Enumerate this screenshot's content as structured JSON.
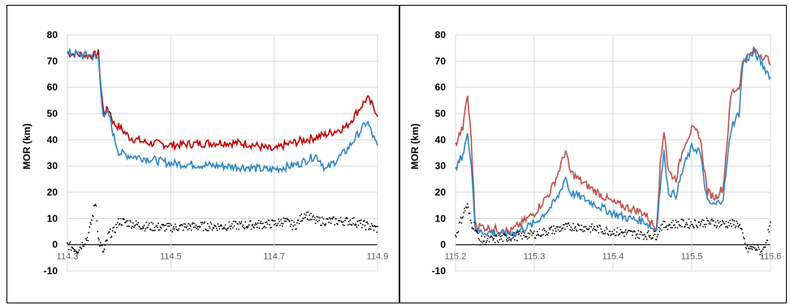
{
  "chart_data": [
    {
      "type": "line",
      "ylabel": "MOR (km)",
      "xlabel": "",
      "ylim": [
        -10,
        80
      ],
      "yticks": [
        80,
        70,
        60,
        50,
        40,
        30,
        20,
        10,
        0,
        -10
      ],
      "xlim": [
        114.3,
        114.9
      ],
      "xtick_labels": [
        "114.3",
        "114.5",
        "114.7",
        "114.9"
      ],
      "grid": true,
      "series": [
        {
          "color": "#c00000",
          "style": "line",
          "x": [
            114.3,
            114.35,
            114.36,
            114.365,
            114.37,
            114.38,
            114.39,
            114.4,
            114.42,
            114.45,
            114.5,
            114.55,
            114.6,
            114.65,
            114.7,
            114.72,
            114.74,
            114.76,
            114.78,
            114.8,
            114.84,
            114.88,
            114.9
          ],
          "y": [
            73,
            72,
            73,
            60,
            50,
            52,
            46,
            45,
            41,
            39,
            38,
            38.5,
            39,
            38.5,
            36,
            38,
            39,
            40,
            41,
            42,
            45,
            56,
            50
          ]
        },
        {
          "color": "#2e86c1",
          "style": "line",
          "x": [
            114.3,
            114.35,
            114.36,
            114.365,
            114.37,
            114.38,
            114.39,
            114.4,
            114.42,
            114.45,
            114.5,
            114.55,
            114.6,
            114.65,
            114.69,
            114.72,
            114.75,
            114.78,
            114.79,
            114.8,
            114.84,
            114.88,
            114.9
          ],
          "y": [
            73,
            72,
            71,
            58,
            49,
            50,
            41,
            35,
            34,
            33,
            31,
            30.5,
            30,
            29.5,
            28.5,
            29.5,
            31,
            34,
            32,
            28.5,
            36,
            47,
            37
          ]
        },
        {
          "color": "#000000",
          "style": "dots",
          "x": [
            114.3,
            114.32,
            114.34,
            114.35,
            114.355,
            114.36,
            114.37,
            114.38,
            114.39,
            114.4,
            114.45,
            114.5,
            114.55,
            114.6,
            114.65,
            114.7,
            114.72,
            114.74,
            114.76,
            114.78,
            114.8,
            114.85,
            114.9
          ],
          "y": [
            0,
            -2,
            3,
            12,
            17,
            2,
            -3,
            4,
            5,
            9,
            7,
            6.5,
            7,
            7,
            7.5,
            8,
            9,
            7,
            12,
            9,
            9,
            9,
            6
          ]
        }
      ]
    },
    {
      "type": "line",
      "ylabel": "MOR (km)",
      "xlabel": "",
      "ylim": [
        -10,
        80
      ],
      "yticks": [
        80,
        70,
        60,
        50,
        40,
        30,
        20,
        10,
        0,
        -10
      ],
      "xlim": [
        115.2,
        115.6
      ],
      "xtick_labels": [
        "115.2",
        "115.3",
        "115.4",
        "115.5",
        "115.6"
      ],
      "grid": true,
      "series": [
        {
          "color": "#c0504d",
          "style": "line",
          "x": [
            115.2,
            115.205,
            115.21,
            115.215,
            115.22,
            115.225,
            115.23,
            115.25,
            115.27,
            115.3,
            115.32,
            115.33,
            115.34,
            115.345,
            115.36,
            115.38,
            115.4,
            115.42,
            115.44,
            115.455,
            115.46,
            115.465,
            115.47,
            115.48,
            115.49,
            115.5,
            115.51,
            115.52,
            115.53,
            115.54,
            115.55,
            115.56,
            115.565,
            115.58,
            115.6
          ],
          "y": [
            38,
            42,
            45,
            58,
            40,
            8,
            7,
            6,
            5,
            12,
            20,
            27,
            36,
            28,
            24,
            20,
            16,
            14,
            12,
            6,
            30,
            45,
            28,
            25,
            38,
            44,
            42,
            20,
            18,
            22,
            58,
            60,
            70,
            74,
            70
          ]
        },
        {
          "color": "#2e86c1",
          "style": "line",
          "x": [
            115.2,
            115.205,
            115.21,
            115.215,
            115.22,
            115.225,
            115.23,
            115.25,
            115.27,
            115.3,
            115.32,
            115.33,
            115.34,
            115.345,
            115.36,
            115.38,
            115.4,
            115.42,
            115.44,
            115.455,
            115.46,
            115.465,
            115.47,
            115.48,
            115.49,
            115.5,
            115.51,
            115.52,
            115.53,
            115.54,
            115.55,
            115.56,
            115.565,
            115.58,
            115.6
          ],
          "y": [
            28,
            32,
            35,
            42,
            32,
            6,
            5,
            4.5,
            4,
            8,
            14,
            18,
            26,
            20,
            18,
            15,
            12,
            10,
            9,
            5,
            22,
            36,
            20,
            19,
            30,
            37,
            36,
            16,
            15,
            18,
            45,
            50,
            70,
            73,
            64
          ]
        },
        {
          "color": "#000000",
          "style": "dots",
          "x": [
            115.2,
            115.21,
            115.215,
            115.22,
            115.225,
            115.23,
            115.25,
            115.27,
            115.3,
            115.33,
            115.35,
            115.38,
            115.4,
            115.43,
            115.455,
            115.46,
            115.48,
            115.5,
            115.52,
            115.54,
            115.56,
            115.57,
            115.58,
            115.59,
            115.6
          ],
          "y": [
            3,
            12,
            15,
            8,
            7,
            1.5,
            2,
            3,
            4,
            6,
            7,
            6,
            5,
            4,
            3.5,
            7,
            8,
            8,
            8.5,
            8,
            8,
            -2,
            -1,
            -3,
            7
          ]
        }
      ]
    }
  ]
}
